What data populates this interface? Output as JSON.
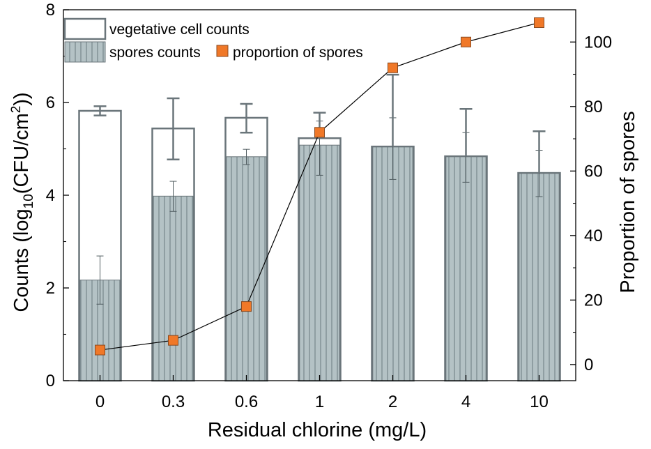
{
  "chart_data": {
    "type": "bar",
    "categories": [
      "0",
      "0.3",
      "0.6",
      "1",
      "2",
      "4",
      "10"
    ],
    "xlabel": "Residual chlorine (mg/L)",
    "ylabel": {
      "prefix": "Counts (log",
      "sub": "10",
      "mid": "(CFU/cm",
      "sup": "2",
      "suffix": "))"
    },
    "y2label": "Proportion of spores",
    "ylim": [
      0,
      8
    ],
    "y2lim": [
      -5,
      110
    ],
    "yticks": [
      "0",
      "2",
      "4",
      "6",
      "8"
    ],
    "y2ticks": [
      "0",
      "20",
      "40",
      "60",
      "80",
      "100"
    ],
    "legend_position": "top-left",
    "colors": {
      "spore_fill": "#b4c2c5",
      "spore_hatch": "#7f8f93",
      "frame": "#6a757a",
      "marker": "#f07828",
      "marker_edge": "#8a4a20",
      "line": "#000000"
    },
    "series": [
      {
        "name": "vegetative cell counts",
        "values": [
          5.82,
          5.44,
          5.67,
          5.23,
          5.05,
          4.84,
          4.48
        ],
        "error_plus": [
          0.1,
          0.65,
          0.3,
          0.55,
          1.55,
          1.02,
          0.9
        ],
        "error_minus": [
          0.1,
          0.67,
          0.32,
          0.0,
          0.0,
          0.0,
          0.0
        ]
      },
      {
        "name": "spores counts",
        "values": [
          2.17,
          3.98,
          4.83,
          5.08,
          5.04,
          4.83,
          4.47
        ],
        "error_plus": [
          0.52,
          0.32,
          0.16,
          0.52,
          0.63,
          0.52,
          0.5
        ],
        "error_minus": [
          0.52,
          0.33,
          0.17,
          0.65,
          0.7,
          0.55,
          0.5
        ]
      },
      {
        "name": "proportion of spores",
        "axis": "right",
        "values": [
          4.5,
          7.5,
          18,
          72,
          92,
          100,
          106
        ]
      }
    ]
  }
}
